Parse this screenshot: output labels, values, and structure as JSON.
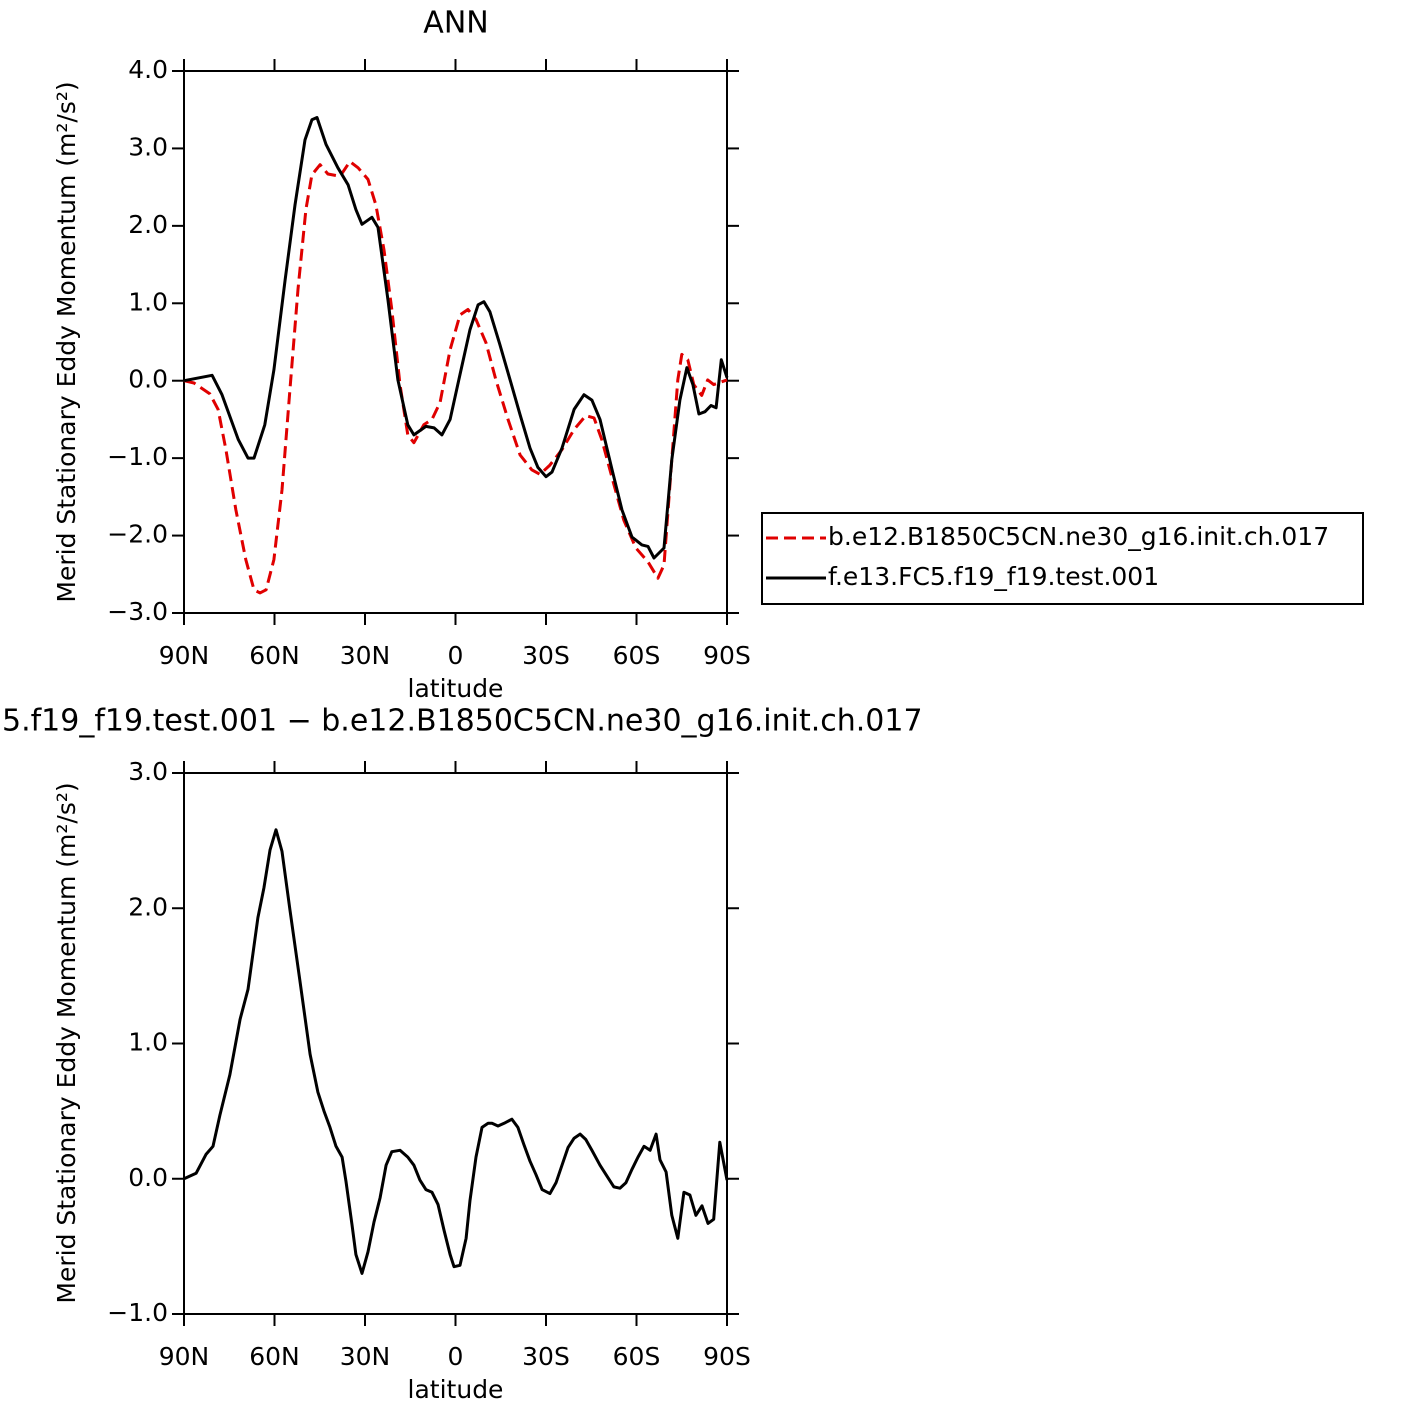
{
  "chart_data": [
    {
      "type": "line",
      "title": "ANN",
      "xlabel": "latitude",
      "ylabel": "Merid Stationary Eddy Momentum (m²/s²)",
      "xlim": [
        90,
        -90
      ],
      "xticks": [
        {
          "value": 90,
          "label": "90N"
        },
        {
          "value": 60,
          "label": "60N"
        },
        {
          "value": 30,
          "label": "30N"
        },
        0,
        {
          "value": -30,
          "label": "30S"
        },
        {
          "value": -60,
          "label": "60S"
        },
        {
          "value": -90,
          "label": "90S"
        }
      ],
      "ylim": [
        -3,
        4
      ],
      "yticks": [
        {
          "value": -3,
          "label": "−3.0"
        },
        {
          "value": -2,
          "label": "−2.0"
        },
        {
          "value": -1,
          "label": "−1.0"
        },
        {
          "value": 0,
          "label": "0.0"
        },
        {
          "value": 1,
          "label": "1.0"
        },
        {
          "value": 2,
          "label": "2.0"
        },
        {
          "value": 3,
          "label": "3.0"
        },
        {
          "value": 4,
          "label": "4.0"
        }
      ],
      "legend": "right",
      "series": [
        {
          "name": "b.e12.B1850C5CN.ne30_g16.init.ch.017",
          "color": "#e00000",
          "linestyle": "dashed",
          "x": [
            90,
            86.7,
            81.4,
            78.7,
            76.1,
            72.8,
            69.5,
            66.8,
            64.8,
            62.8,
            60.2,
            57.5,
            54.9,
            52.2,
            49.6,
            47.6,
            44.9,
            42.3,
            38.3,
            35,
            32.3,
            29,
            26.4,
            23.7,
            21.1,
            18.4,
            15.8,
            13.8,
            10.5,
            7.8,
            5.1,
            1.8,
            -1.5,
            -4.1,
            -6.8,
            -10.1,
            -13.4,
            -17.4,
            -21.4,
            -25.3,
            -28,
            -31.3,
            -35.3,
            -39.3,
            -43.2,
            -45.9,
            -48.5,
            -52.5,
            -55.8,
            -59.8,
            -63.8,
            -67.1,
            -69.1,
            -71.7,
            -73.7,
            -75,
            -77,
            -79,
            -81.6,
            -83.6,
            -85.6,
            -90
          ],
          "values": [
            0,
            -0.03,
            -0.17,
            -0.37,
            -0.89,
            -1.67,
            -2.31,
            -2.7,
            -2.74,
            -2.7,
            -2.31,
            -1.41,
            -0.12,
            1.18,
            2.21,
            2.66,
            2.79,
            2.67,
            2.64,
            2.83,
            2.75,
            2.6,
            2.27,
            1.69,
            0.92,
            -0.05,
            -0.7,
            -0.8,
            -0.57,
            -0.5,
            -0.28,
            0.4,
            0.85,
            0.92,
            0.79,
            0.49,
            0.01,
            -0.5,
            -0.96,
            -1.15,
            -1.21,
            -1.09,
            -0.89,
            -0.63,
            -0.45,
            -0.48,
            -0.76,
            -1.34,
            -1.8,
            -2.16,
            -2.34,
            -2.55,
            -2.38,
            -1.02,
            0.01,
            0.34,
            0.27,
            -0.05,
            -0.19,
            0.01,
            -0.05,
            0.01
          ]
        },
        {
          "name": "f.e13.FC5.f19_f19.test.001",
          "color": "#000000",
          "linestyle": "solid",
          "x": [
            90,
            80.7,
            77.4,
            72,
            68.8,
            66.8,
            63.2,
            60.2,
            56.5,
            53.2,
            49.9,
            47.6,
            45.9,
            42.9,
            39,
            35.6,
            33,
            31,
            27.7,
            25.7,
            22.4,
            19.1,
            15.8,
            13.8,
            9.8,
            7.1,
            4.5,
            1.8,
            -1.5,
            -4.8,
            -7.5,
            -9.4,
            -11.4,
            -14.7,
            -18.1,
            -21.4,
            -24.7,
            -27.3,
            -30,
            -32,
            -35.3,
            -39.3,
            -42.6,
            -45.2,
            -47.9,
            -51.9,
            -55.2,
            -58.5,
            -61.8,
            -63.8,
            -65.8,
            -69.1,
            -71.7,
            -74.4,
            -76.7,
            -78.7,
            -80.7,
            -82.7,
            -84.7,
            -86.4,
            -88.1,
            -90
          ],
          "values": [
            0,
            0.07,
            -0.18,
            -0.76,
            -1,
            -1,
            -0.57,
            0.14,
            1.3,
            2.27,
            3.11,
            3.37,
            3.4,
            3.05,
            2.75,
            2.53,
            2.21,
            2.02,
            2.11,
            1.98,
            1.05,
            0.01,
            -0.57,
            -0.7,
            -0.59,
            -0.61,
            -0.7,
            -0.5,
            0.08,
            0.66,
            0.98,
            1.02,
            0.89,
            0.47,
            0.01,
            -0.44,
            -0.87,
            -1.12,
            -1.24,
            -1.18,
            -0.87,
            -0.37,
            -0.18,
            -0.25,
            -0.5,
            -1.15,
            -1.67,
            -2.02,
            -2.12,
            -2.14,
            -2.29,
            -2.16,
            -1.02,
            -0.25,
            0.17,
            -0.05,
            -0.43,
            -0.4,
            -0.32,
            -0.35,
            0.27,
            0.04
          ]
        }
      ]
    },
    {
      "type": "line",
      "title": "5.f19_f19.test.001 − b.e12.B1850C5CN.ne30_g16.init.ch.017",
      "xlabel": "latitude",
      "ylabel": "Merid Stationary Eddy Momentum (m²/s²)",
      "xlim": [
        90,
        -90
      ],
      "xticks": [
        {
          "value": 90,
          "label": "90N"
        },
        {
          "value": 60,
          "label": "60N"
        },
        {
          "value": 30,
          "label": "30N"
        },
        0,
        {
          "value": -30,
          "label": "30S"
        },
        {
          "value": -60,
          "label": "60S"
        },
        {
          "value": -90,
          "label": "90S"
        }
      ],
      "ylim": [
        -1,
        3
      ],
      "yticks": [
        {
          "value": -1,
          "label": "−1.0"
        },
        {
          "value": 0,
          "label": "0.0"
        },
        {
          "value": 1,
          "label": "1.0"
        },
        {
          "value": 2,
          "label": "2.0"
        },
        {
          "value": 3,
          "label": "3.0"
        }
      ],
      "series": [
        {
          "color": "#000000",
          "linestyle": "solid",
          "x": [
            90,
            86,
            82.7,
            80.4,
            78.1,
            74.8,
            71.4,
            68.8,
            65.5,
            63.5,
            61.5,
            59.5,
            57.5,
            54.9,
            51.6,
            48.2,
            45.6,
            43.6,
            41.6,
            39.6,
            37.6,
            36.3,
            34.3,
            33,
            31,
            29,
            27,
            25,
            23,
            21.1,
            18.4,
            15.8,
            13.8,
            11.8,
            9.8,
            7.8,
            5.8,
            3.8,
            1.8,
            0.5,
            -1.5,
            -3.5,
            -4.8,
            -6.8,
            -8.8,
            -10.8,
            -12.1,
            -14.1,
            -16.1,
            -18.7,
            -20.7,
            -22.7,
            -24.7,
            -26.7,
            -28.7,
            -31.3,
            -33.3,
            -35.3,
            -37.3,
            -39.3,
            -41.3,
            -43.2,
            -45.2,
            -47.9,
            -50.5,
            -52.5,
            -54.5,
            -56.5,
            -58.5,
            -60.5,
            -62.5,
            -64.5,
            -66.5,
            -67.8,
            -69.8,
            -71.7,
            -73.7,
            -75.7,
            -77.7,
            -79.7,
            -81.7,
            -83.7,
            -85.6,
            -87.6,
            -90
          ],
          "values": [
            0,
            0.04,
            0.18,
            0.24,
            0.47,
            0.77,
            1.18,
            1.4,
            1.93,
            2.15,
            2.43,
            2.58,
            2.42,
            1.99,
            1.47,
            0.92,
            0.64,
            0.5,
            0.38,
            0.24,
            0.16,
            -0.02,
            -0.34,
            -0.56,
            -0.7,
            -0.54,
            -0.32,
            -0.14,
            0.1,
            0.2,
            0.21,
            0.16,
            0.1,
            -0.01,
            -0.08,
            -0.1,
            -0.19,
            -0.38,
            -0.56,
            -0.65,
            -0.64,
            -0.44,
            -0.16,
            0.16,
            0.38,
            0.41,
            0.41,
            0.39,
            0.41,
            0.44,
            0.38,
            0.25,
            0.13,
            0.03,
            -0.08,
            -0.11,
            -0.03,
            0.1,
            0.23,
            0.3,
            0.33,
            0.29,
            0.21,
            0.1,
            0.01,
            -0.06,
            -0.07,
            -0.03,
            0.07,
            0.16,
            0.24,
            0.21,
            0.33,
            0.14,
            0.05,
            -0.27,
            -0.44,
            -0.1,
            -0.12,
            -0.27,
            -0.2,
            -0.33,
            -0.3,
            0.27,
            -0.01
          ]
        }
      ]
    }
  ]
}
